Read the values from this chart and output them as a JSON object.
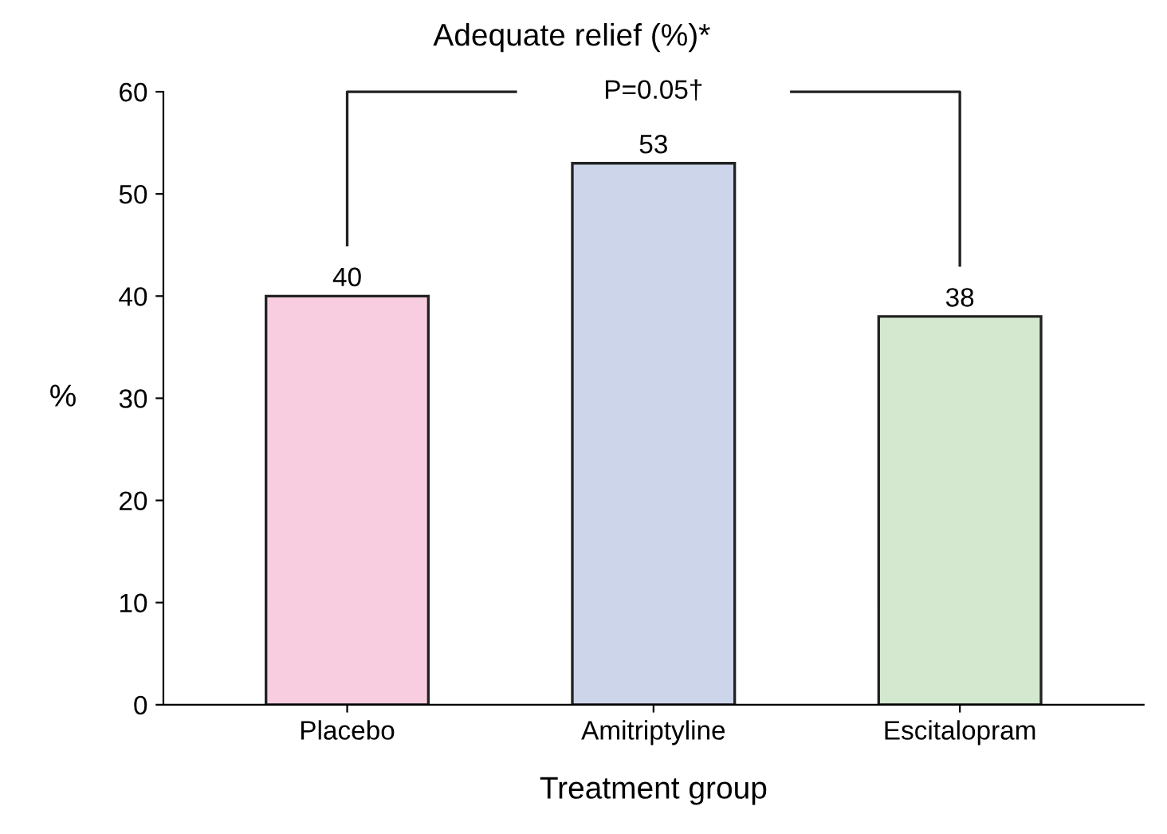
{
  "chart_data": {
    "type": "bar",
    "title": "Adequate relief (%)*",
    "xlabel": "Treatment group",
    "ylabel": "%",
    "categories": [
      "Placebo",
      "Amitriptyline",
      "Escitalopram"
    ],
    "values": [
      40,
      53,
      38
    ],
    "colors": [
      "#f9cde0",
      "#cdd5ea",
      "#d3e8cf"
    ],
    "ylim": [
      0,
      60
    ],
    "yticks": [
      0,
      10,
      20,
      30,
      40,
      50,
      60
    ],
    "data_labels": true,
    "grid": false,
    "annotations": [
      "P=0.05†"
    ]
  }
}
